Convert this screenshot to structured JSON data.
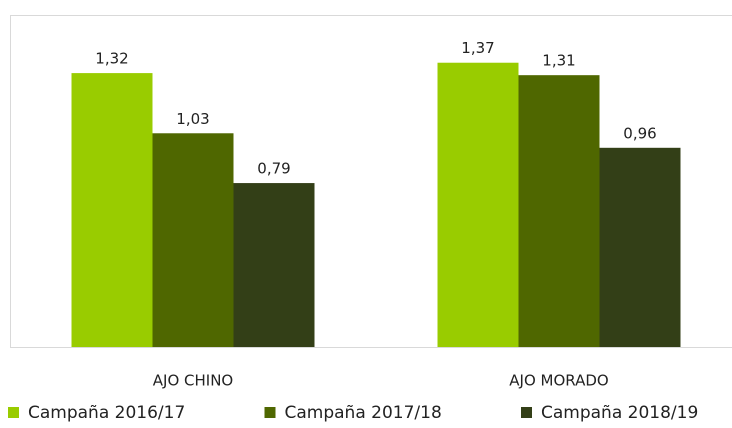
{
  "chart_data": {
    "type": "bar",
    "categories": [
      "AJO CHINO",
      "AJO MORADO"
    ],
    "series": [
      {
        "name": "Campaña 2016/17",
        "color": "#99cc00",
        "values": [
          1.32,
          1.37
        ],
        "value_labels": [
          "1,32",
          "1,37"
        ]
      },
      {
        "name": "Campaña 2017/18",
        "color": "#4f6700",
        "values": [
          1.03,
          1.31
        ],
        "value_labels": [
          "1,03",
          "1,31"
        ]
      },
      {
        "name": "Campaña 2018/19",
        "color": "#333f17",
        "values": [
          0.79,
          0.96
        ],
        "value_labels": [
          "0,79",
          "0,96"
        ]
      }
    ],
    "ylim": [
      0,
      1.6
    ],
    "legend": "bottom"
  }
}
